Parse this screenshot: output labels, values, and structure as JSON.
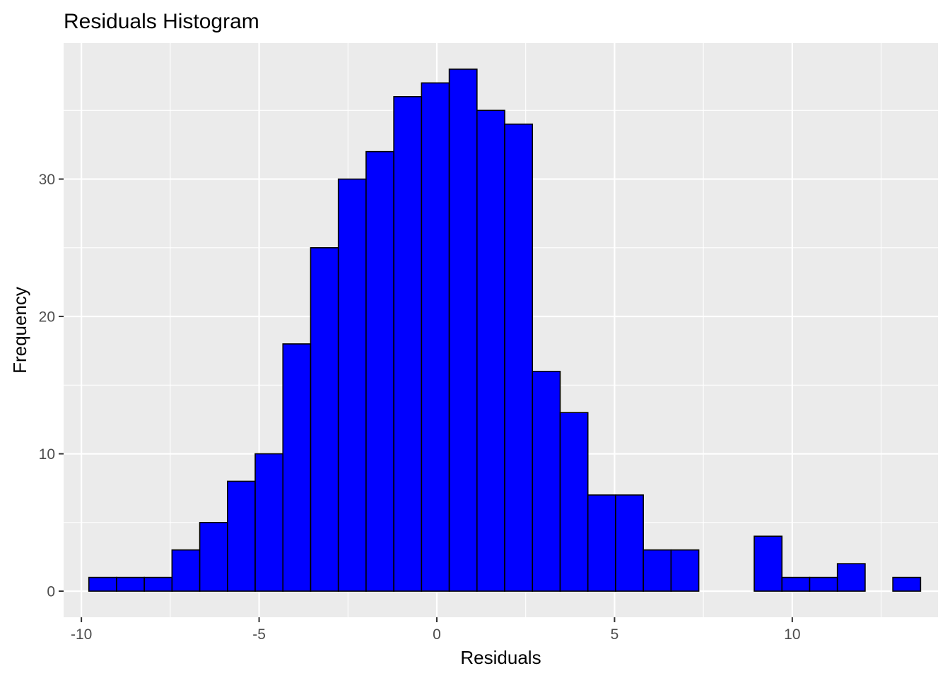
{
  "chart_data": {
    "type": "bar",
    "title": "Residuals Histogram",
    "xlabel": "Residuals",
    "ylabel": "Frequency",
    "xlim": [
      -10.5,
      14.1
    ],
    "ylim": [
      -1.9,
      39.9
    ],
    "grid": true,
    "x_ticks": [
      {
        "value": -10,
        "label": "-10"
      },
      {
        "value": -5,
        "label": "-5"
      },
      {
        "value": 0,
        "label": "0"
      },
      {
        "value": 5,
        "label": "5"
      },
      {
        "value": 10,
        "label": "10"
      }
    ],
    "y_ticks": [
      {
        "value": 0,
        "label": "0"
      },
      {
        "value": 10,
        "label": "10"
      },
      {
        "value": 20,
        "label": "20"
      },
      {
        "value": 30,
        "label": "30"
      }
    ],
    "bins": [
      {
        "x0": -9.79,
        "x1": -9.01,
        "count": 1
      },
      {
        "x0": -9.01,
        "x1": -8.23,
        "count": 1
      },
      {
        "x0": -8.23,
        "x1": -7.45,
        "count": 1
      },
      {
        "x0": -7.45,
        "x1": -6.67,
        "count": 3
      },
      {
        "x0": -6.67,
        "x1": -5.89,
        "count": 5
      },
      {
        "x0": -5.89,
        "x1": -5.11,
        "count": 8
      },
      {
        "x0": -5.11,
        "x1": -4.33,
        "count": 10
      },
      {
        "x0": -4.33,
        "x1": -3.55,
        "count": 18
      },
      {
        "x0": -3.55,
        "x1": -2.77,
        "count": 25
      },
      {
        "x0": -2.77,
        "x1": -1.99,
        "count": 30
      },
      {
        "x0": -1.99,
        "x1": -1.21,
        "count": 32
      },
      {
        "x0": -1.21,
        "x1": -0.43,
        "count": 36
      },
      {
        "x0": -0.43,
        "x1": 0.35,
        "count": 37
      },
      {
        "x0": 0.35,
        "x1": 1.13,
        "count": 38
      },
      {
        "x0": 1.13,
        "x1": 1.91,
        "count": 35
      },
      {
        "x0": 1.91,
        "x1": 2.69,
        "count": 34
      },
      {
        "x0": 2.69,
        "x1": 3.47,
        "count": 16
      },
      {
        "x0": 3.47,
        "x1": 4.25,
        "count": 13
      },
      {
        "x0": 4.25,
        "x1": 5.03,
        "count": 7
      },
      {
        "x0": 5.03,
        "x1": 5.81,
        "count": 7
      },
      {
        "x0": 5.81,
        "x1": 6.59,
        "count": 3
      },
      {
        "x0": 6.59,
        "x1": 7.37,
        "count": 3
      },
      {
        "x0": 7.37,
        "x1": 8.15,
        "count": 0
      },
      {
        "x0": 8.15,
        "x1": 8.93,
        "count": 0
      },
      {
        "x0": 8.93,
        "x1": 9.71,
        "count": 4
      },
      {
        "x0": 9.71,
        "x1": 10.49,
        "count": 1
      },
      {
        "x0": 10.49,
        "x1": 11.27,
        "count": 1
      },
      {
        "x0": 11.27,
        "x1": 12.05,
        "count": 2
      },
      {
        "x0": 12.05,
        "x1": 12.83,
        "count": 0
      },
      {
        "x0": 12.83,
        "x1": 13.61,
        "count": 1
      }
    ],
    "colors": {
      "panel_background": "#EBEBEB",
      "grid": "#FFFFFF",
      "bar_fill": "#0000FF",
      "bar_outline": "#000000",
      "tick_text": "#4D4D4D",
      "tick_mark": "#333333"
    }
  }
}
